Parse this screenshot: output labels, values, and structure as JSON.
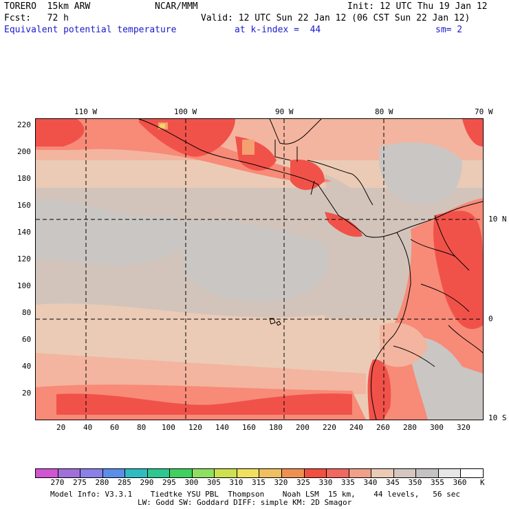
{
  "header": {
    "model": "TORERO  15km ARW",
    "org": "NCAR/MMM",
    "init": "Init: 12 UTC Thu 19 Jan 12",
    "fcst": "Fcst:   72 h",
    "valid": "Valid: 12 UTC Sun 22 Jan 12 (06 CST Sun 22 Jan 12)",
    "field": "Equivalent potential temperature",
    "level": "at k-index =  44",
    "smooth": "sm= 2"
  },
  "map": {
    "top_longitude_labels": [
      "110 W",
      "100 W",
      "90 W",
      "80 W",
      "70 W"
    ],
    "right_latitude_labels": [
      "10 N",
      "0",
      "10 S"
    ],
    "y_grid_labels": [
      "220",
      "200",
      "180",
      "160",
      "140",
      "120",
      "100",
      "80",
      "60",
      "40",
      "20"
    ],
    "x_grid_labels": [
      "20",
      "40",
      "60",
      "80",
      "100",
      "120",
      "140",
      "160",
      "180",
      "200",
      "220",
      "240",
      "260",
      "280",
      "300",
      "320"
    ],
    "colors": {
      "k330": "#f0524a",
      "k335": "#f88a78",
      "k340": "#f3b59f",
      "k345": "#ebcbb6",
      "k350": "#d2c4bb",
      "k355": "#cac6c4",
      "k325": "#f5a070",
      "k320": "#f0d468"
    }
  },
  "colorbar": {
    "labels": [
      "270",
      "275",
      "280",
      "285",
      "290",
      "295",
      "300",
      "305",
      "310",
      "315",
      "320",
      "325",
      "330",
      "335",
      "340",
      "345",
      "350",
      "355",
      "360"
    ],
    "unit": "K",
    "colors": [
      "#d055d0",
      "#a070d8",
      "#8a80e8",
      "#5b8ee8",
      "#2ebcc0",
      "#2cc890",
      "#40d060",
      "#8ee060",
      "#cce050",
      "#f0e060",
      "#f0c060",
      "#f09050",
      "#f05040",
      "#f06860",
      "#f0a088",
      "#ebcbb6",
      "#d6c6c0",
      "#c4c2c2",
      "#e6e6e6",
      "#ffffff"
    ]
  },
  "footer": {
    "line1": "Model Info: V3.3.1    Tiedtke YSU PBL  Thompson    Noah LSM  15 km,    44 levels,   56 sec",
    "line2": "LW: Godd SW: Goddard DIFF: simple KM: 2D Smagor"
  }
}
